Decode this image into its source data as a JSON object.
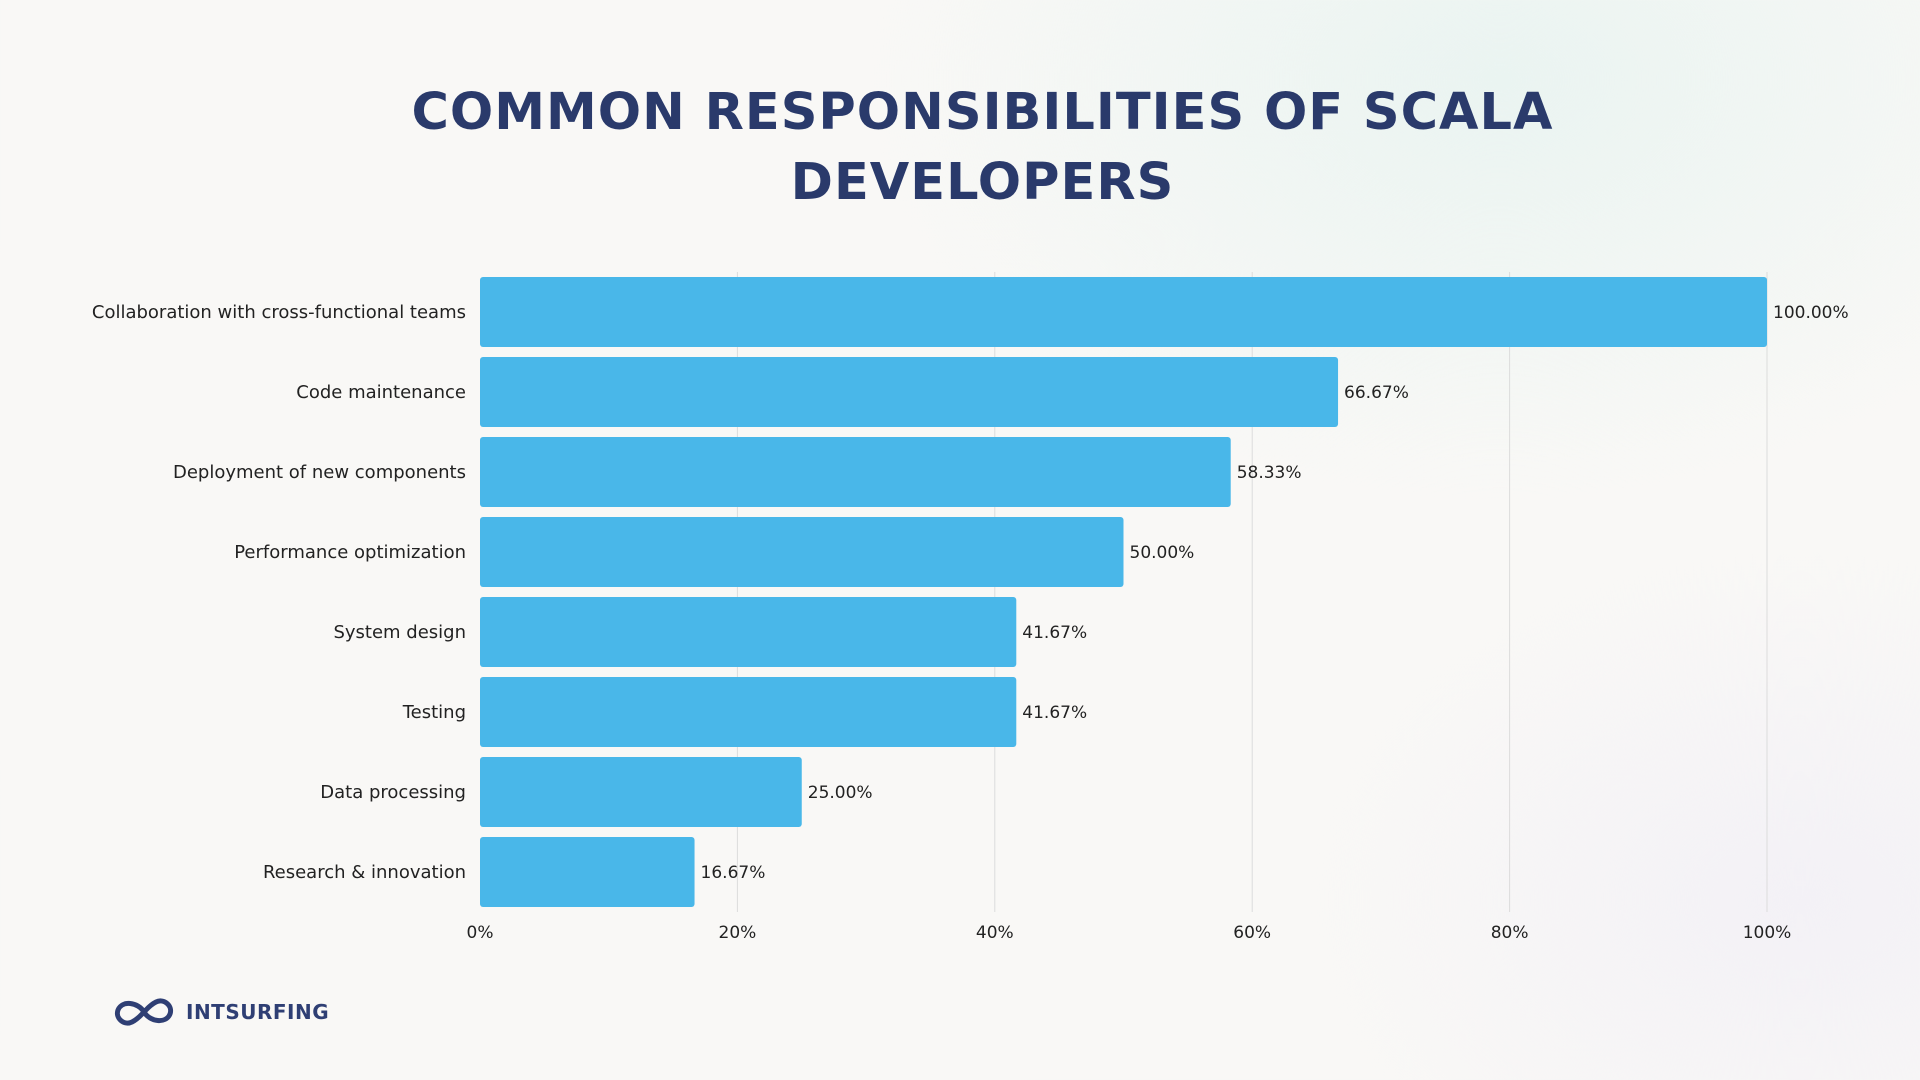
{
  "chart_data": {
    "type": "bar",
    "orientation": "horizontal",
    "title_lines": [
      "COMMON RESPONSIBILITIES OF SCALA",
      "DEVELOPERS"
    ],
    "categories": [
      "Collaboration with cross-functional teams",
      "Code maintenance",
      "Deployment of new components",
      "Performance optimization",
      "System design",
      "Testing",
      "Data processing",
      "Research & innovation"
    ],
    "values": [
      100.0,
      66.67,
      58.33,
      50.0,
      41.67,
      41.67,
      25.0,
      16.67
    ],
    "value_labels": [
      "100.00%",
      "66.67%",
      "58.33%",
      "50.00%",
      "41.67%",
      "41.67%",
      "25.00%",
      "16.67%"
    ],
    "xlim": [
      0,
      100
    ],
    "xticks": [
      0,
      20,
      40,
      60,
      80,
      100
    ],
    "xtick_labels": [
      "0%",
      "20%",
      "40%",
      "60%",
      "80%",
      "100%"
    ],
    "grid": true,
    "bar_color": "#49b7e9"
  },
  "brand": {
    "name": "INTSURFING",
    "logo_icon": "infinity-loop-icon",
    "color": "#2f3f74"
  }
}
